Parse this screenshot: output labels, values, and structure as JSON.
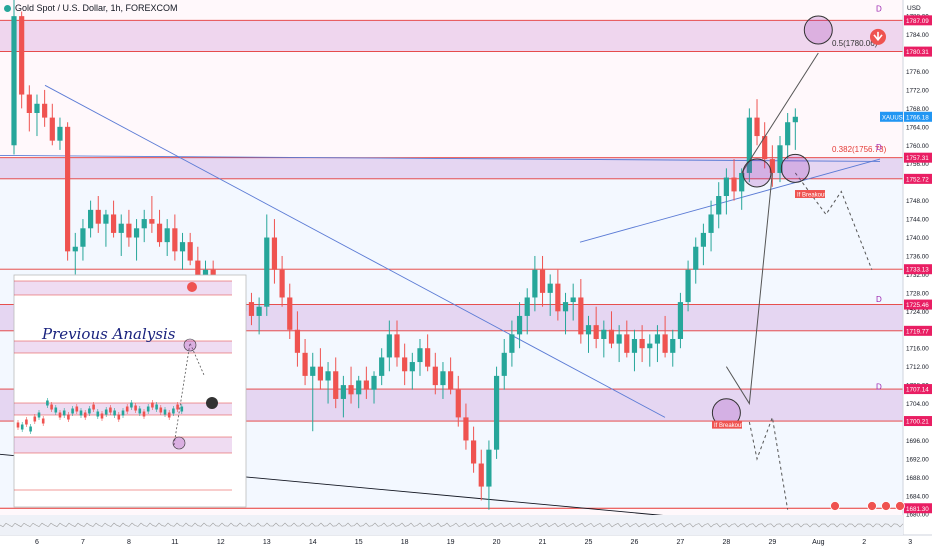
{
  "header": {
    "title": "Gold Spot / U.S. Dollar, 1h, FOREXCOM"
  },
  "colors": {
    "up": "#26a69a",
    "down": "#ef5350",
    "zone_fill": "#9c27b0",
    "support_fill": "#2962ff",
    "line_red": "#e53935",
    "trend_blue": "#5b7bd5",
    "price_tag": "#e91e63",
    "last_price_tag": "#2196f3"
  },
  "chart_data": {
    "type": "candlestick",
    "title": "Gold Spot / U.S. Dollar, 1h, FOREXCOM",
    "ylim": [
      1675.5,
      1791.5
    ],
    "y_axis_ticks": [
      1788,
      1784,
      1776,
      1772,
      1768,
      1764,
      1760,
      1756,
      1748,
      1744,
      1740,
      1736,
      1732,
      1728,
      1724,
      1716,
      1712,
      1708,
      1704,
      1696,
      1692,
      1688,
      1684,
      1680
    ],
    "y_axis_top_label": "USD",
    "x_ticks": [
      {
        "label": "6",
        "i": 3
      },
      {
        "label": "7",
        "i": 9
      },
      {
        "label": "8",
        "i": 15
      },
      {
        "label": "11",
        "i": 21
      },
      {
        "label": "12",
        "i": 27
      },
      {
        "label": "13",
        "i": 33
      },
      {
        "label": "14",
        "i": 39
      },
      {
        "label": "15",
        "i": 45
      },
      {
        "label": "18",
        "i": 51
      },
      {
        "label": "19",
        "i": 57
      },
      {
        "label": "20",
        "i": 63
      },
      {
        "label": "21",
        "i": 69
      },
      {
        "label": "25",
        "i": 75
      },
      {
        "label": "26",
        "i": 81
      },
      {
        "label": "27",
        "i": 87
      },
      {
        "label": "28",
        "i": 93
      },
      {
        "label": "29",
        "i": 99
      },
      {
        "label": "Aug",
        "i": 105
      },
      {
        "label": "2",
        "i": 111
      },
      {
        "label": "3",
        "i": 117
      }
    ],
    "price_tags": [
      {
        "label": "1787.09",
        "value": 1787.09
      },
      {
        "label": "1780.31",
        "value": 1780.31
      },
      {
        "label": "XAUUSD",
        "value": 1766.18,
        "kind": "last"
      },
      {
        "label": "1766.18",
        "value": 1766.18,
        "kind": "last"
      },
      {
        "label": "1757.31",
        "value": 1757.31
      },
      {
        "label": "1752.72",
        "value": 1752.72
      },
      {
        "label": "1733.13",
        "value": 1733.13
      },
      {
        "label": "1725.46",
        "value": 1725.46
      },
      {
        "label": "1719.77",
        "value": 1719.77
      },
      {
        "label": "1707.14",
        "value": 1707.14
      },
      {
        "label": "1700.21",
        "value": 1700.21
      },
      {
        "label": "1681.30",
        "value": 1681.3
      }
    ],
    "zones": [
      {
        "from": 1780.31,
        "to": 1787.09,
        "color": "purple"
      },
      {
        "from": 1752.72,
        "to": 1757.31,
        "color": "purple"
      },
      {
        "from": 1719.77,
        "to": 1725.46,
        "color": "purple"
      },
      {
        "from": 1700.21,
        "to": 1707.14,
        "color": "purple"
      }
    ],
    "horizontal_lines": [
      1787.09,
      1780.31,
      1757.31,
      1752.72,
      1733.13,
      1725.46,
      1719.77,
      1707.14,
      1700.21,
      1681.3
    ],
    "fib_labels": [
      "0.5(1780.06)",
      "0.382(1756.73)"
    ],
    "zone_markers": [
      "D",
      "D",
      "D",
      "D"
    ],
    "annotations": [
      "If Breakout",
      "If Breakout"
    ],
    "inset_label": "Previous Analysis",
    "candles_ohlc": [
      [
        1760.0,
        1793.0,
        1758.0,
        1788.0
      ],
      [
        1788.0,
        1789.0,
        1768.0,
        1771.0
      ],
      [
        1771.0,
        1773.0,
        1763.0,
        1767.0
      ],
      [
        1767.0,
        1771.0,
        1762.0,
        1769.0
      ],
      [
        1769.0,
        1772.0,
        1764.0,
        1766.0
      ],
      [
        1766.0,
        1769.0,
        1760.0,
        1761.0
      ],
      [
        1761.0,
        1766.0,
        1759.0,
        1764.0
      ],
      [
        1764.0,
        1765.0,
        1735.0,
        1737.0
      ],
      [
        1737.0,
        1741.0,
        1732.0,
        1738.0
      ],
      [
        1738.0,
        1744.0,
        1735.0,
        1742.0
      ],
      [
        1742.0,
        1748.0,
        1740.0,
        1746.0
      ],
      [
        1746.0,
        1749.0,
        1741.0,
        1743.0
      ],
      [
        1743.0,
        1746.0,
        1738.0,
        1745.0
      ],
      [
        1745.0,
        1748.0,
        1740.0,
        1741.0
      ],
      [
        1741.0,
        1745.0,
        1736.0,
        1743.0
      ],
      [
        1743.0,
        1746.0,
        1738.0,
        1740.0
      ],
      [
        1740.0,
        1744.0,
        1735.0,
        1742.0
      ],
      [
        1742.0,
        1746.0,
        1739.0,
        1744.0
      ],
      [
        1744.0,
        1749.0,
        1741.0,
        1743.0
      ],
      [
        1743.0,
        1746.0,
        1738.0,
        1739.0
      ],
      [
        1739.0,
        1744.0,
        1736.0,
        1742.0
      ],
      [
        1742.0,
        1745.0,
        1735.0,
        1737.0
      ],
      [
        1737.0,
        1741.0,
        1733.0,
        1739.0
      ],
      [
        1739.0,
        1741.0,
        1734.0,
        1735.0
      ],
      [
        1735.0,
        1738.0,
        1729.0,
        1731.0
      ],
      [
        1731.0,
        1735.0,
        1727.0,
        1733.0
      ],
      [
        1733.0,
        1735.0,
        1724.0,
        1726.0
      ],
      [
        1726.0,
        1730.0,
        1722.0,
        1728.0
      ],
      [
        1728.0,
        1730.0,
        1720.0,
        1722.0
      ],
      [
        1722.0,
        1726.0,
        1718.0,
        1724.0
      ],
      [
        1724.0,
        1727.0,
        1720.0,
        1726.0
      ],
      [
        1726.0,
        1728.0,
        1721.0,
        1723.0
      ],
      [
        1723.0,
        1727.0,
        1719.0,
        1725.0
      ],
      [
        1725.0,
        1745.0,
        1723.0,
        1740.0
      ],
      [
        1740.0,
        1744.0,
        1730.0,
        1733.0
      ],
      [
        1733.0,
        1736.0,
        1725.0,
        1727.0
      ],
      [
        1727.0,
        1730.0,
        1718.0,
        1720.0
      ],
      [
        1720.0,
        1724.0,
        1712.0,
        1715.0
      ],
      [
        1715.0,
        1718.0,
        1708.0,
        1710.0
      ],
      [
        1710.0,
        1715.0,
        1698.0,
        1712.0
      ],
      [
        1712.0,
        1716.0,
        1707.0,
        1709.0
      ],
      [
        1709.0,
        1713.0,
        1704.0,
        1711.0
      ],
      [
        1711.0,
        1714.0,
        1703.0,
        1705.0
      ],
      [
        1705.0,
        1710.0,
        1701.0,
        1708.0
      ],
      [
        1708.0,
        1712.0,
        1704.0,
        1706.0
      ],
      [
        1706.0,
        1710.0,
        1703.0,
        1709.0
      ],
      [
        1709.0,
        1712.0,
        1705.0,
        1707.0
      ],
      [
        1707.0,
        1711.0,
        1704.0,
        1710.0
      ],
      [
        1710.0,
        1716.0,
        1708.0,
        1714.0
      ],
      [
        1714.0,
        1722.0,
        1711.0,
        1719.0
      ],
      [
        1719.0,
        1722.0,
        1712.0,
        1714.0
      ],
      [
        1714.0,
        1717.0,
        1708.0,
        1711.0
      ],
      [
        1711.0,
        1715.0,
        1707.0,
        1713.0
      ],
      [
        1713.0,
        1718.0,
        1710.0,
        1716.0
      ],
      [
        1716.0,
        1719.0,
        1711.0,
        1712.0
      ],
      [
        1712.0,
        1715.0,
        1706.0,
        1708.0
      ],
      [
        1708.0,
        1713.0,
        1705.0,
        1711.0
      ],
      [
        1711.0,
        1714.0,
        1706.0,
        1707.0
      ],
      [
        1707.0,
        1710.0,
        1699.0,
        1701.0
      ],
      [
        1701.0,
        1704.0,
        1694.0,
        1696.0
      ],
      [
        1696.0,
        1699.0,
        1689.0,
        1691.0
      ],
      [
        1691.0,
        1694.0,
        1683.0,
        1686.0
      ],
      [
        1686.0,
        1696.0,
        1681.0,
        1694.0
      ],
      [
        1694.0,
        1712.0,
        1692.0,
        1710.0
      ],
      [
        1710.0,
        1718.0,
        1707.0,
        1715.0
      ],
      [
        1715.0,
        1722.0,
        1712.0,
        1719.0
      ],
      [
        1719.0,
        1726.0,
        1716.0,
        1723.0
      ],
      [
        1723.0,
        1729.0,
        1719.0,
        1727.0
      ],
      [
        1727.0,
        1736.0,
        1724.0,
        1733.0
      ],
      [
        1733.0,
        1736.0,
        1725.0,
        1728.0
      ],
      [
        1728.0,
        1732.0,
        1723.0,
        1730.0
      ],
      [
        1730.0,
        1733.0,
        1722.0,
        1724.0
      ],
      [
        1724.0,
        1728.0,
        1719.0,
        1726.0
      ],
      [
        1726.0,
        1730.0,
        1722.0,
        1727.0
      ],
      [
        1727.0,
        1731.0,
        1717.0,
        1719.0
      ],
      [
        1719.0,
        1723.0,
        1715.0,
        1721.0
      ],
      [
        1721.0,
        1725.0,
        1716.0,
        1718.0
      ],
      [
        1718.0,
        1722.0,
        1714.0,
        1720.0
      ],
      [
        1720.0,
        1724.0,
        1716.0,
        1717.0
      ],
      [
        1717.0,
        1721.0,
        1713.0,
        1719.0
      ],
      [
        1719.0,
        1722.0,
        1714.0,
        1715.0
      ],
      [
        1715.0,
        1720.0,
        1711.0,
        1718.0
      ],
      [
        1718.0,
        1721.0,
        1713.0,
        1716.0
      ],
      [
        1716.0,
        1719.0,
        1712.0,
        1717.0
      ],
      [
        1717.0,
        1721.0,
        1713.0,
        1719.0
      ],
      [
        1719.0,
        1723.0,
        1714.0,
        1715.0
      ],
      [
        1715.0,
        1720.0,
        1712.0,
        1718.0
      ],
      [
        1718.0,
        1728.0,
        1716.0,
        1726.0
      ],
      [
        1726.0,
        1735.0,
        1724.0,
        1733.0
      ],
      [
        1733.0,
        1740.0,
        1730.0,
        1738.0
      ],
      [
        1738.0,
        1743.0,
        1734.0,
        1741.0
      ],
      [
        1741.0,
        1748.0,
        1737.0,
        1745.0
      ],
      [
        1745.0,
        1752.0,
        1742.0,
        1749.0
      ],
      [
        1749.0,
        1755.0,
        1745.0,
        1753.0
      ],
      [
        1753.0,
        1757.0,
        1748.0,
        1750.0
      ],
      [
        1750.0,
        1755.0,
        1746.0,
        1754.0
      ],
      [
        1754.0,
        1768.0,
        1752.0,
        1766.0
      ],
      [
        1766.0,
        1770.0,
        1760.0,
        1762.0
      ],
      [
        1762.0,
        1765.0,
        1755.0,
        1757.0
      ],
      [
        1757.0,
        1760.0,
        1751.0,
        1754.0
      ],
      [
        1754.0,
        1762.0,
        1752.0,
        1760.0
      ],
      [
        1760.0,
        1767.0,
        1757.0,
        1765.0
      ],
      [
        1765.0,
        1768.0,
        1759.0,
        1766.18
      ]
    ]
  }
}
